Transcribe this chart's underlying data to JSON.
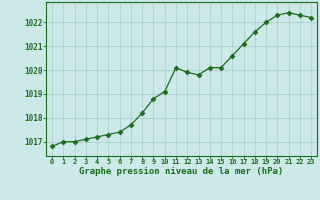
{
  "x": [
    0,
    1,
    2,
    3,
    4,
    5,
    6,
    7,
    8,
    9,
    10,
    11,
    12,
    13,
    14,
    15,
    16,
    17,
    18,
    19,
    20,
    21,
    22,
    23
  ],
  "y": [
    1016.8,
    1017.0,
    1017.0,
    1017.1,
    1017.2,
    1017.3,
    1017.4,
    1017.7,
    1018.2,
    1018.8,
    1019.1,
    1020.1,
    1019.9,
    1019.8,
    1020.1,
    1020.1,
    1020.6,
    1021.1,
    1021.6,
    1022.0,
    1022.3,
    1022.4,
    1022.3,
    1022.2
  ],
  "line_color": "#1a6e1a",
  "marker_color": "#1a6e1a",
  "bg_color": "#cce8e8",
  "grid_color": "#aacfcf",
  "xlabel": "Graphe pression niveau de la mer (hPa)",
  "xlabel_color": "#1a6e1a",
  "ylabel_ticks": [
    1017,
    1018,
    1019,
    1020,
    1021,
    1022
  ],
  "xlim": [
    -0.5,
    23.5
  ],
  "ylim": [
    1016.4,
    1022.85
  ],
  "tick_color": "#1a6e1a",
  "spine_color": "#1a6e1a"
}
